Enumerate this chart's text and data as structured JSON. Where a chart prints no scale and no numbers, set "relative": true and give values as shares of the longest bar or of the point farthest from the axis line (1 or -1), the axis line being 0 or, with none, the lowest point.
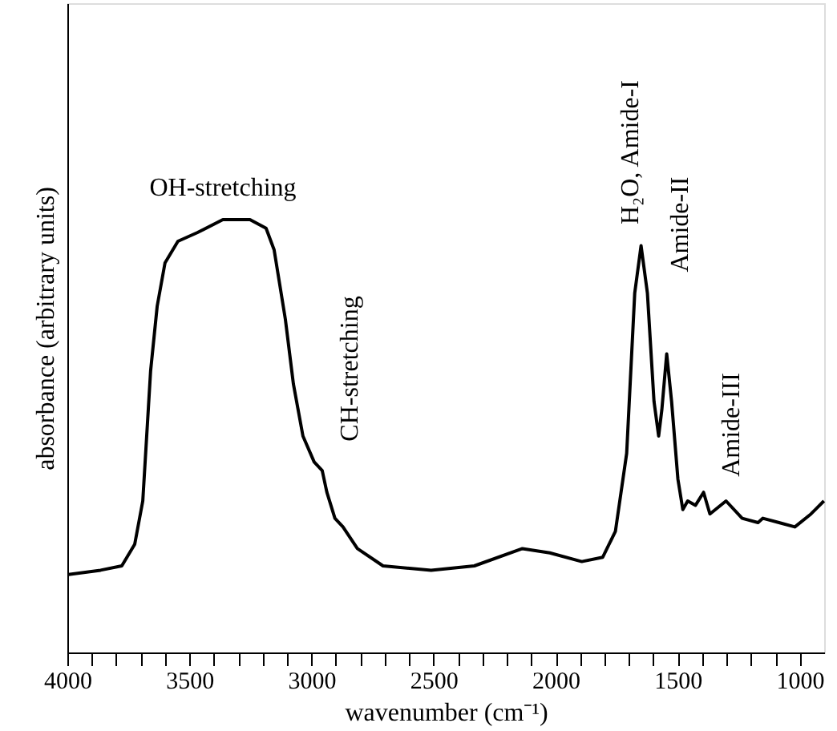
{
  "chart_data": {
    "type": "line",
    "relative": true,
    "xlabel": "wavenumber (cm⁻¹)",
    "ylabel": "absorbance (arbitrary units)",
    "xlim": [
      4000,
      900
    ],
    "xticks": [
      4000,
      {
        "value": 3900,
        "label": null
      },
      {
        "value": 3800,
        "label": null
      },
      {
        "value": 3700,
        "label": null
      },
      {
        "value": 3600,
        "label": null
      },
      3500,
      {
        "value": 3400,
        "label": null
      },
      {
        "value": 3300,
        "label": null
      },
      {
        "value": 3200,
        "label": null
      },
      {
        "value": 3100,
        "label": null
      },
      3000,
      {
        "value": 2900,
        "label": null
      },
      {
        "value": 2800,
        "label": null
      },
      {
        "value": 2700,
        "label": null
      },
      {
        "value": 2600,
        "label": null
      },
      2500,
      {
        "value": 2400,
        "label": null
      },
      {
        "value": 2300,
        "label": null
      },
      {
        "value": 2200,
        "label": null
      },
      {
        "value": 2100,
        "label": null
      },
      2000,
      {
        "value": 1900,
        "label": null
      },
      {
        "value": 1800,
        "label": null
      },
      {
        "value": 1700,
        "label": null
      },
      {
        "value": 1600,
        "label": null
      },
      1500,
      {
        "value": 1400,
        "label": null
      },
      {
        "value": 1300,
        "label": null
      },
      {
        "value": 1200,
        "label": null
      },
      {
        "value": 1100,
        "label": null
      },
      1000
    ],
    "grid": false,
    "marker": "none",
    "line_style": "solid",
    "series": [
      {
        "color": "#000000",
        "x": [
          3995,
          3864,
          3777,
          3724,
          3691,
          3659,
          3632,
          3600,
          3547,
          3468,
          3363,
          3252,
          3186,
          3153,
          3107,
          3074,
          3035,
          2989,
          2956,
          2937,
          2904,
          2871,
          2812,
          2707,
          2510,
          2333,
          2136,
          2024,
          1893,
          1807,
          1755,
          1709,
          1676,
          1650,
          1624,
          1597,
          1578,
          1565,
          1545,
          1525,
          1499,
          1479,
          1459,
          1427,
          1394,
          1368,
          1302,
          1236,
          1171,
          1151,
          1085,
          1020,
          954,
          901
        ],
        "values": [
          0.18,
          0.19,
          0.2,
          0.25,
          0.35,
          0.65,
          0.8,
          0.9,
          0.95,
          0.97,
          1.0,
          1.0,
          0.98,
          0.93,
          0.77,
          0.62,
          0.5,
          0.44,
          0.42,
          0.37,
          0.31,
          0.29,
          0.24,
          0.2,
          0.19,
          0.2,
          0.24,
          0.23,
          0.21,
          0.22,
          0.28,
          0.46,
          0.83,
          0.94,
          0.83,
          0.58,
          0.5,
          0.56,
          0.69,
          0.58,
          0.4,
          0.33,
          0.35,
          0.34,
          0.37,
          0.32,
          0.35,
          0.31,
          0.3,
          0.31,
          0.3,
          0.29,
          0.32,
          0.35
        ]
      }
    ],
    "annotations": [
      "OH-stretching",
      "CH-stretching",
      "H₂O, Amide-I",
      "Amide-II",
      "Amide-III"
    ]
  }
}
